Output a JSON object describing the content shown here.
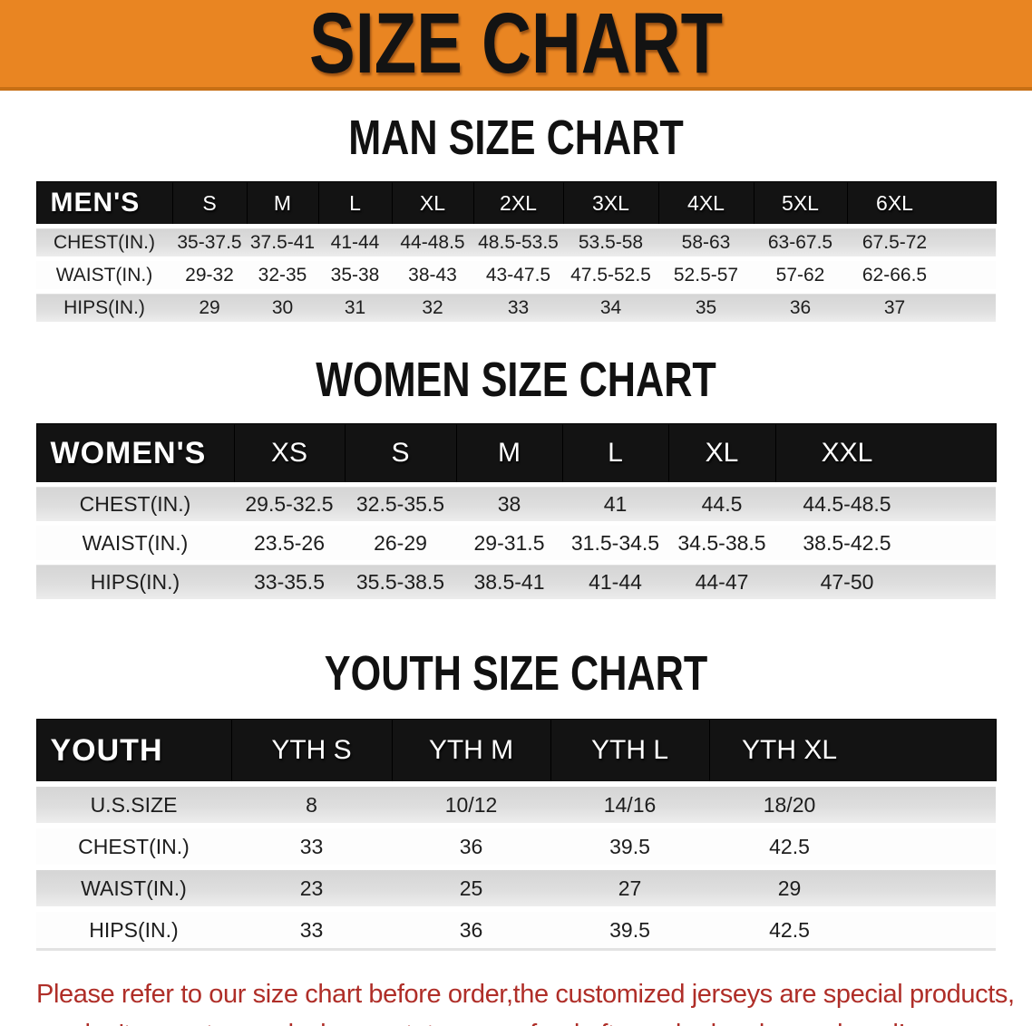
{
  "banner": {
    "title": "SIZE CHART"
  },
  "sections": {
    "men": {
      "heading": "MAN SIZE CHART"
    },
    "women": {
      "heading": "WOMEN SIZE CHART"
    },
    "youth": {
      "heading": "YOUTH SIZE CHART"
    }
  },
  "tables": {
    "men": {
      "header": [
        "MEN'S",
        "S",
        "M",
        "L",
        "XL",
        "2XL",
        "3XL",
        "4XL",
        "5XL",
        "6XL"
      ],
      "rows": [
        {
          "label": "CHEST(IN.)",
          "values": [
            "35-37.5",
            "37.5-41",
            "41-44",
            "44-48.5",
            "48.5-53.5",
            "53.5-58",
            "58-63",
            "63-67.5",
            "67.5-72"
          ]
        },
        {
          "label": "WAIST(IN.)",
          "values": [
            "29-32",
            "32-35",
            "35-38",
            "38-43",
            "43-47.5",
            "47.5-52.5",
            "52.5-57",
            "57-62",
            "62-66.5"
          ]
        },
        {
          "label": "HIPS(IN.)",
          "values": [
            "29",
            "30",
            "31",
            "32",
            "33",
            "34",
            "35",
            "36",
            "37"
          ]
        }
      ]
    },
    "women": {
      "header": [
        "WOMEN'S",
        "XS",
        "S",
        "M",
        "L",
        "XL",
        "XXL"
      ],
      "rows": [
        {
          "label": "CHEST(IN.)",
          "values": [
            "29.5-32.5",
            "32.5-35.5",
            "38",
            "41",
            "44.5",
            "44.5-48.5"
          ]
        },
        {
          "label": "WAIST(IN.)",
          "values": [
            "23.5-26",
            "26-29",
            "29-31.5",
            "31.5-34.5",
            "34.5-38.5",
            "38.5-42.5"
          ]
        },
        {
          "label": "HIPS(IN.)",
          "values": [
            "33-35.5",
            "35.5-38.5",
            "38.5-41",
            "41-44",
            "44-47",
            "47-50"
          ]
        }
      ]
    },
    "youth": {
      "header": [
        "YOUTH",
        "YTH S",
        "YTH M",
        "YTH L",
        "YTH XL"
      ],
      "rows": [
        {
          "label": "U.S.SIZE",
          "values": [
            "8",
            "10/12",
            "14/16",
            "18/20"
          ]
        },
        {
          "label": "CHEST(IN.)",
          "values": [
            "33",
            "36",
            "39.5",
            "42.5"
          ]
        },
        {
          "label": "WAIST(IN.)",
          "values": [
            "23",
            "25",
            "27",
            "29"
          ]
        },
        {
          "label": "HIPS(IN.)",
          "values": [
            "33",
            "36",
            "39.5",
            "42.5"
          ]
        }
      ]
    }
  },
  "footer": {
    "line1": "Please refer to our size chart before order,the customized jerseys are special products,",
    "line2": "we don't accept cancel, change, teturn or refund after order has been placed!"
  },
  "colors": {
    "banner_bg": "#E98522",
    "banner_border": "#C76F15",
    "table_header_bg": "#131313",
    "table_header_text": "#FFFFFF",
    "row_stripe_gray": "#DCDCDC",
    "footer_text_red": "#AF2E28",
    "title_text": "#131313"
  }
}
